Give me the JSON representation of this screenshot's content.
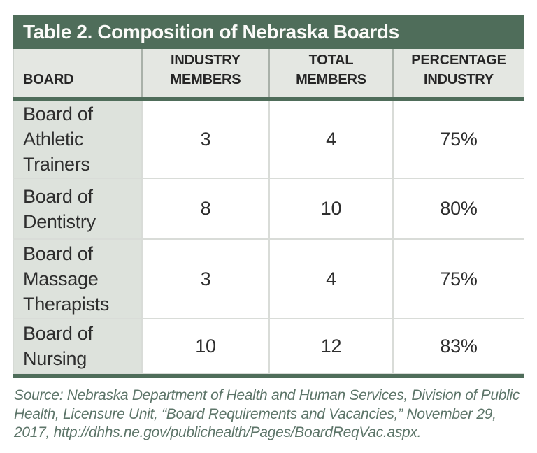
{
  "title": "Table 2. Composition of Nebraska Boards",
  "table": {
    "headers": [
      "BOARD",
      "INDUSTRY\nMEMBERS",
      "TOTAL\nMEMBERS",
      "PERCENTAGE\nINDUSTRY"
    ],
    "rows": [
      {
        "board": "Board of\nAthletic\nTrainers",
        "industry_members": "3",
        "total_members": "4",
        "percentage_industry": "75%"
      },
      {
        "board": "Board of\nDentistry",
        "industry_members": "8",
        "total_members": "10",
        "percentage_industry": "80%"
      },
      {
        "board": "Board of\nMassage\nTherapists",
        "industry_members": "3",
        "total_members": "4",
        "percentage_industry": "75%"
      },
      {
        "board": "Board of\nNursing",
        "industry_members": "10",
        "total_members": "12",
        "percentage_industry": "83%"
      }
    ]
  },
  "source": "Source: Nebraska Department of Health and Human Services, Division of Public\nHealth, Licensure Unit, “Board Requirements and Vacancies,” November 29,\n2017, http://dhhs.ne.gov/publichealth/Pages/BoardReqVac.aspx.",
  "colors": {
    "accent_green": "#4f6d5a",
    "header_row_bg": "#e4e7e2",
    "board_column_bg": "#dde2dc",
    "grid_line": "#d9dcd8",
    "header_divider": "#a9b1a9",
    "title_text": "#fbfbf8",
    "body_text": "#2e2e2e",
    "source_text": "#5d7569"
  }
}
